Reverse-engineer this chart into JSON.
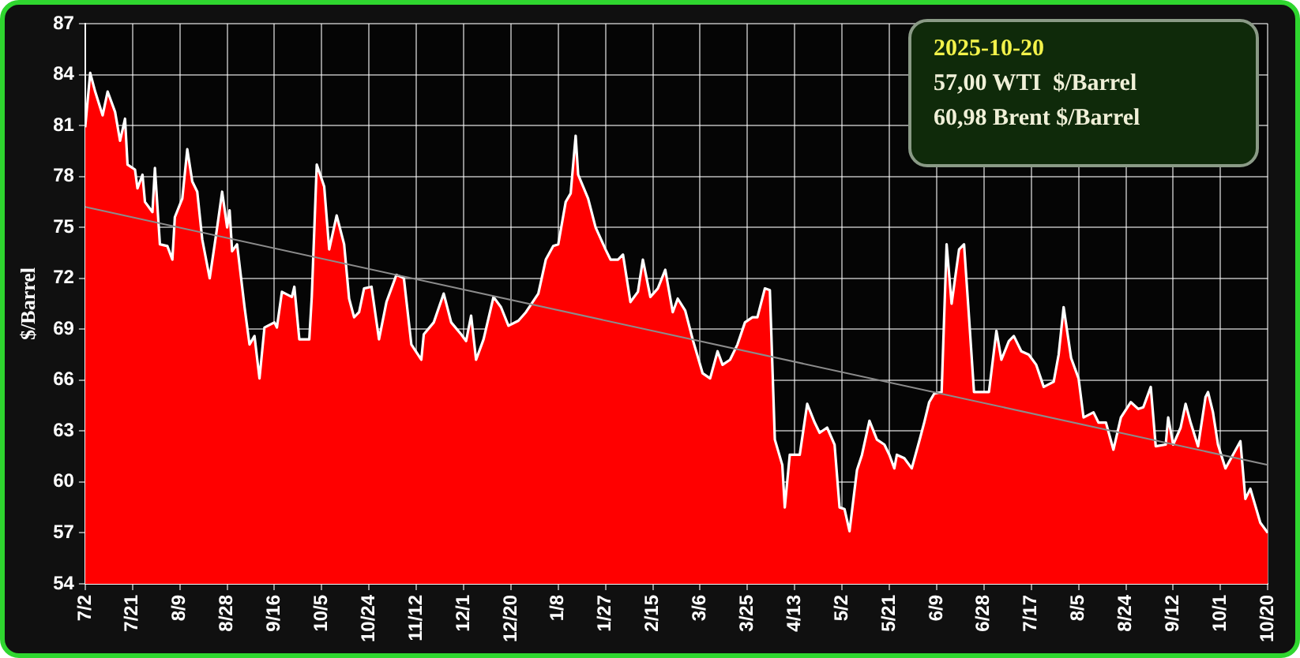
{
  "chart_data": {
    "type": "area",
    "ylabel": "$/Barrel",
    "annotations": [
      "2025-10-20",
      "57,00 WTI  $/Barrel",
      "60,98 Brent $/Barrel"
    ],
    "xlim": [
      "2024-07-02",
      "2025-10-20"
    ],
    "xticks": [
      {
        "value": "2024-07-02",
        "label": "7/2"
      },
      {
        "value": "2024-07-21",
        "label": "7/21"
      },
      {
        "value": "2024-08-09",
        "label": "8/9"
      },
      {
        "value": "2024-08-28",
        "label": "8/28"
      },
      {
        "value": "2024-09-16",
        "label": "9/16"
      },
      {
        "value": "2024-10-05",
        "label": "10/5"
      },
      {
        "value": "2024-10-24",
        "label": "10/24"
      },
      {
        "value": "2024-11-12",
        "label": "11/12"
      },
      {
        "value": "2024-12-01",
        "label": "12/1"
      },
      {
        "value": "2024-12-20",
        "label": "12/20"
      },
      {
        "value": "2025-01-08",
        "label": "1/8"
      },
      {
        "value": "2025-01-27",
        "label": "1/27"
      },
      {
        "value": "2025-02-15",
        "label": "2/15"
      },
      {
        "value": "2025-03-06",
        "label": "3/6"
      },
      {
        "value": "2025-03-25",
        "label": "3/25"
      },
      {
        "value": "2025-04-13",
        "label": "4/13"
      },
      {
        "value": "2025-05-02",
        "label": "5/2"
      },
      {
        "value": "2025-05-21",
        "label": "5/21"
      },
      {
        "value": "2025-06-09",
        "label": "6/9"
      },
      {
        "value": "2025-06-28",
        "label": "6/28"
      },
      {
        "value": "2025-07-17",
        "label": "7/17"
      },
      {
        "value": "2025-08-05",
        "label": "8/5"
      },
      {
        "value": "2025-08-24",
        "label": "8/24"
      },
      {
        "value": "2025-09-12",
        "label": "9/12"
      },
      {
        "value": "2025-10-01",
        "label": "10/1"
      },
      {
        "value": "2025-10-20",
        "label": "10/20"
      }
    ],
    "ylim": [
      54,
      87
    ],
    "yticks": [
      54,
      57,
      60,
      63,
      66,
      69,
      72,
      75,
      78,
      81,
      84,
      87
    ],
    "grid": true,
    "legend": false,
    "series": [
      {
        "color": "#ff0000",
        "x": [
          "2024-07-02",
          "2024-07-04",
          "2024-07-06",
          "2024-07-09",
          "2024-07-11",
          "2024-07-14",
          "2024-07-16",
          "2024-07-18",
          "2024-07-19",
          "2024-07-22",
          "2024-07-23",
          "2024-07-25",
          "2024-07-26",
          "2024-07-29",
          "2024-07-30",
          "2024-08-01",
          "2024-08-04",
          "2024-08-06",
          "2024-08-07",
          "2024-08-10",
          "2024-08-12",
          "2024-08-14",
          "2024-08-16",
          "2024-08-18",
          "2024-08-21",
          "2024-08-24",
          "2024-08-26",
          "2024-08-28",
          "2024-08-29",
          "2024-08-30",
          "2024-09-01",
          "2024-09-04",
          "2024-09-06",
          "2024-09-08",
          "2024-09-10",
          "2024-09-12",
          "2024-09-16",
          "2024-09-17",
          "2024-09-19",
          "2024-09-23",
          "2024-09-24",
          "2024-09-26",
          "2024-09-30",
          "2024-10-01",
          "2024-10-03",
          "2024-10-06",
          "2024-10-08",
          "2024-10-11",
          "2024-10-14",
          "2024-10-16",
          "2024-10-18",
          "2024-10-20",
          "2024-10-22",
          "2024-10-25",
          "2024-10-28",
          "2024-10-31",
          "2024-11-04",
          "2024-11-07",
          "2024-11-10",
          "2024-11-14",
          "2024-11-15",
          "2024-11-19",
          "2024-11-23",
          "2024-11-26",
          "2024-11-30",
          "2024-12-02",
          "2024-12-04",
          "2024-12-06",
          "2024-12-09",
          "2024-12-13",
          "2024-12-16",
          "2024-12-19",
          "2024-12-23",
          "2024-12-26",
          "2024-12-31",
          "2025-01-03",
          "2025-01-06",
          "2025-01-08",
          "2025-01-11",
          "2025-01-13",
          "2025-01-15",
          "2025-01-16",
          "2025-01-20",
          "2025-01-23",
          "2025-01-27",
          "2025-01-29",
          "2025-02-01",
          "2025-02-03",
          "2025-02-06",
          "2025-02-09",
          "2025-02-11",
          "2025-02-14",
          "2025-02-17",
          "2025-02-20",
          "2025-02-23",
          "2025-02-25",
          "2025-02-28",
          "2025-03-03",
          "2025-03-07",
          "2025-03-10",
          "2025-03-13",
          "2025-03-15",
          "2025-03-18",
          "2025-03-21",
          "2025-03-24",
          "2025-03-27",
          "2025-03-29",
          "2025-04-01",
          "2025-04-03",
          "2025-04-05",
          "2025-04-08",
          "2025-04-09",
          "2025-04-11",
          "2025-04-15",
          "2025-04-18",
          "2025-04-21",
          "2025-04-23",
          "2025-04-26",
          "2025-04-29",
          "2025-05-01",
          "2025-05-03",
          "2025-05-05",
          "2025-05-08",
          "2025-05-10",
          "2025-05-13",
          "2025-05-16",
          "2025-05-19",
          "2025-05-21",
          "2025-05-23",
          "2025-05-24",
          "2025-05-27",
          "2025-05-30",
          "2025-06-02",
          "2025-06-04",
          "2025-06-06",
          "2025-06-08",
          "2025-06-11",
          "2025-06-13",
          "2025-06-15",
          "2025-06-18",
          "2025-06-20",
          "2025-06-22",
          "2025-06-24",
          "2025-06-27",
          "2025-06-30",
          "2025-07-03",
          "2025-07-05",
          "2025-07-08",
          "2025-07-10",
          "2025-07-13",
          "2025-07-16",
          "2025-07-19",
          "2025-07-22",
          "2025-07-26",
          "2025-07-28",
          "2025-07-30",
          "2025-08-02",
          "2025-08-05",
          "2025-08-07",
          "2025-08-11",
          "2025-08-13",
          "2025-08-16",
          "2025-08-19",
          "2025-08-22",
          "2025-08-26",
          "2025-08-29",
          "2025-08-31",
          "2025-09-03",
          "2025-09-05",
          "2025-09-09",
          "2025-09-10",
          "2025-09-12",
          "2025-09-15",
          "2025-09-17",
          "2025-09-19",
          "2025-09-22",
          "2025-09-25",
          "2025-09-26",
          "2025-09-28",
          "2025-09-30",
          "2025-10-03",
          "2025-10-06",
          "2025-10-09",
          "2025-10-11",
          "2025-10-13",
          "2025-10-17",
          "2025-10-20"
        ],
        "values": [
          80.9,
          84.1,
          83.0,
          81.6,
          83.0,
          81.8,
          80.1,
          81.4,
          78.7,
          78.4,
          77.3,
          78.1,
          76.5,
          75.9,
          78.5,
          74.0,
          73.9,
          73.1,
          75.6,
          76.7,
          79.6,
          77.7,
          77.1,
          74.3,
          72.0,
          75.0,
          77.1,
          75.0,
          76.0,
          73.6,
          74.0,
          70.3,
          68.1,
          68.6,
          66.1,
          69.1,
          69.4,
          69.1,
          71.2,
          70.9,
          71.5,
          68.4,
          68.4,
          70.9,
          78.7,
          77.4,
          73.7,
          75.7,
          74.0,
          70.8,
          69.7,
          70.0,
          71.4,
          71.5,
          68.4,
          70.6,
          72.2,
          72.0,
          68.1,
          67.2,
          68.7,
          69.4,
          71.1,
          69.4,
          68.7,
          68.3,
          69.8,
          67.2,
          68.4,
          70.9,
          70.3,
          69.2,
          69.5,
          70.0,
          71.1,
          73.1,
          73.9,
          74.0,
          76.5,
          77.0,
          80.4,
          78.1,
          76.7,
          75.0,
          73.7,
          73.1,
          73.1,
          73.4,
          70.6,
          71.2,
          73.1,
          70.9,
          71.4,
          72.5,
          70.0,
          70.8,
          70.1,
          68.4,
          66.4,
          66.1,
          67.7,
          66.9,
          67.2,
          68.1,
          69.4,
          69.7,
          69.7,
          71.4,
          71.3,
          62.5,
          61.0,
          58.5,
          61.6,
          61.6,
          64.6,
          63.5,
          62.9,
          63.2,
          62.2,
          58.5,
          58.4,
          57.1,
          60.7,
          61.6,
          63.6,
          62.5,
          62.2,
          61.6,
          60.8,
          61.6,
          61.4,
          60.8,
          62.4,
          63.5,
          64.7,
          65.2,
          65.3,
          74.0,
          70.5,
          73.7,
          74.0,
          69.7,
          65.3,
          65.3,
          65.3,
          68.9,
          67.2,
          68.3,
          68.6,
          67.7,
          67.5,
          66.9,
          65.6,
          65.9,
          67.5,
          70.3,
          67.3,
          66.1,
          63.8,
          64.1,
          63.5,
          63.5,
          61.9,
          63.8,
          64.7,
          64.3,
          64.4,
          65.6,
          62.1,
          62.2,
          63.8,
          62.2,
          63.2,
          64.6,
          63.5,
          62.1,
          65.0,
          65.3,
          64.1,
          62.2,
          60.8,
          61.6,
          62.4,
          59.0,
          59.6,
          57.6,
          57.0
        ]
      },
      {
        "type": "line",
        "color": "#8c8c8c",
        "x": [
          "2024-07-02",
          "2025-10-20"
        ],
        "values": [
          76.2,
          61.0
        ]
      }
    ]
  }
}
